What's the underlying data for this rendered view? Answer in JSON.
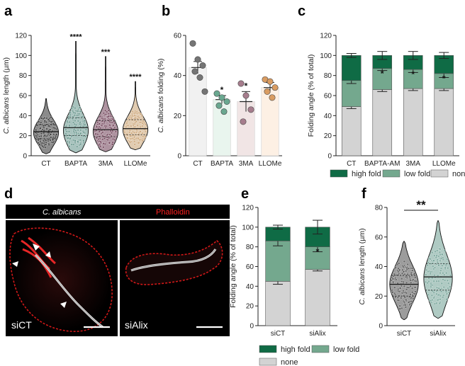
{
  "colors": {
    "high_fold": "#0f6b45",
    "low_fold": "#74a88e",
    "none": "#d3d3d3",
    "phalloidin": "#e01010"
  },
  "chart_data": [
    {
      "id": "a",
      "panel_label": "a",
      "type": "violin",
      "ylabel_italic": "C. albicans",
      "ylabel_rest": " length (µm)",
      "ylim": [
        0,
        120
      ],
      "yticks": [
        0,
        20,
        40,
        60,
        80,
        100,
        120
      ],
      "categories": [
        "CT",
        "BAPTA",
        "3MA",
        "LLOMe"
      ],
      "fill_colors": [
        "#2b2b2b",
        "#5f8f86",
        "#6b3a52",
        "#c9a070"
      ],
      "series": [
        {
          "name": "CT",
          "min": 2,
          "q1": 17,
          "median": 24,
          "q3": 31,
          "max": 57,
          "mode": 23
        },
        {
          "name": "BAPTA",
          "min": 3,
          "q1": 20,
          "median": 28,
          "q3": 38,
          "max": 114,
          "mode": 25
        },
        {
          "name": "3MA",
          "min": 4,
          "q1": 19,
          "median": 26,
          "q3": 35,
          "max": 99,
          "mode": 24
        },
        {
          "name": "LLOMe",
          "min": 6,
          "q1": 21,
          "median": 27,
          "q3": 36,
          "max": 74,
          "mode": 26
        }
      ],
      "significance": [
        "",
        "****",
        "***",
        "****"
      ]
    },
    {
      "id": "b",
      "panel_label": "b",
      "type": "bar",
      "ylabel_italic": "C. albicans",
      "ylabel_rest": " folding (%)",
      "ylim": [
        0,
        60
      ],
      "yticks": [
        0,
        20,
        40,
        60
      ],
      "categories": [
        "CT",
        "BAPTA",
        "3MA",
        "LLOMe"
      ],
      "values": [
        44,
        28,
        27,
        34
      ],
      "sem": [
        3,
        2,
        5,
        2.5
      ],
      "points": [
        [
          56,
          48,
          45,
          42,
          39,
          32
        ],
        [
          31,
          29,
          27,
          25,
          22
        ],
        [
          36,
          30,
          23,
          17
        ],
        [
          38,
          37,
          34,
          32,
          29
        ]
      ],
      "bar_colors": [
        "#f1f1f1",
        "#e9f5ee",
        "#f1e5e5",
        "#fdf0e4"
      ],
      "point_colors": [
        "#757575",
        "#6aa890",
        "#a67d8d",
        "#d99c62"
      ],
      "significance": [
        "",
        "*",
        "*",
        ""
      ]
    },
    {
      "id": "c",
      "panel_label": "c",
      "type": "stacked-bar",
      "ylabel": "Folding angle (% of total)",
      "ylim": [
        0,
        120
      ],
      "yticks": [
        0,
        20,
        40,
        60,
        80,
        100,
        120
      ],
      "categories": [
        "CT",
        "BAPTA-AM",
        "3MA",
        "LLOMe"
      ],
      "series": [
        {
          "name": "none",
          "values": [
            49,
            66,
            67,
            67
          ],
          "sem": [
            2,
            2,
            2,
            2
          ]
        },
        {
          "name": "low fold",
          "values": [
            26,
            21,
            19,
            15
          ],
          "sem": [
            3,
            2,
            3,
            4
          ]
        },
        {
          "name": "high fold",
          "values": [
            25,
            13,
            14,
            18
          ],
          "sem": [
            2,
            4,
            4,
            3
          ]
        }
      ],
      "significance": [
        "",
        "*",
        "*",
        "*"
      ],
      "legend": [
        "high fold",
        "low fold",
        "none"
      ]
    },
    {
      "id": "e",
      "panel_label": "e",
      "type": "stacked-bar",
      "ylabel": "Folding angle (% of total)",
      "ylim": [
        0,
        120
      ],
      "yticks": [
        0,
        20,
        40,
        60,
        80,
        100,
        120
      ],
      "categories": [
        "siCT",
        "siAlix"
      ],
      "series": [
        {
          "name": "none",
          "values": [
            45,
            57
          ],
          "sem": [
            3,
            1.5
          ]
        },
        {
          "name": "low fold",
          "values": [
            41,
            23
          ],
          "sem": [
            5,
            5
          ]
        },
        {
          "name": "high fold",
          "values": [
            14,
            20
          ],
          "sem": [
            2,
            7
          ]
        }
      ],
      "significance": [
        "",
        "*"
      ],
      "legend": [
        "high fold",
        "low fold",
        "none"
      ]
    },
    {
      "id": "f",
      "panel_label": "f",
      "type": "violin",
      "ylabel_italic": "C. albicans",
      "ylabel_rest": " length (µm)",
      "ylim": [
        0,
        80
      ],
      "yticks": [
        0,
        20,
        40,
        60,
        80
      ],
      "categories": [
        "siCT",
        "siAlix"
      ],
      "fill_colors": [
        "#4a4a4a",
        "#6e9f92"
      ],
      "series": [
        {
          "name": "siCT",
          "min": 4,
          "q1": 20,
          "median": 28,
          "q3": 34,
          "max": 57,
          "mode": 28
        },
        {
          "name": "siAlix",
          "min": 5,
          "q1": 24,
          "median": 33,
          "q3": 42,
          "max": 71,
          "mode": 32
        }
      ],
      "bracket": "**"
    }
  ],
  "micrograph": {
    "panel_label": "d",
    "channel_a": "C. albicans",
    "channel_b": "Phalloidin",
    "left_label": "siCT",
    "right_label": "siAlix"
  }
}
